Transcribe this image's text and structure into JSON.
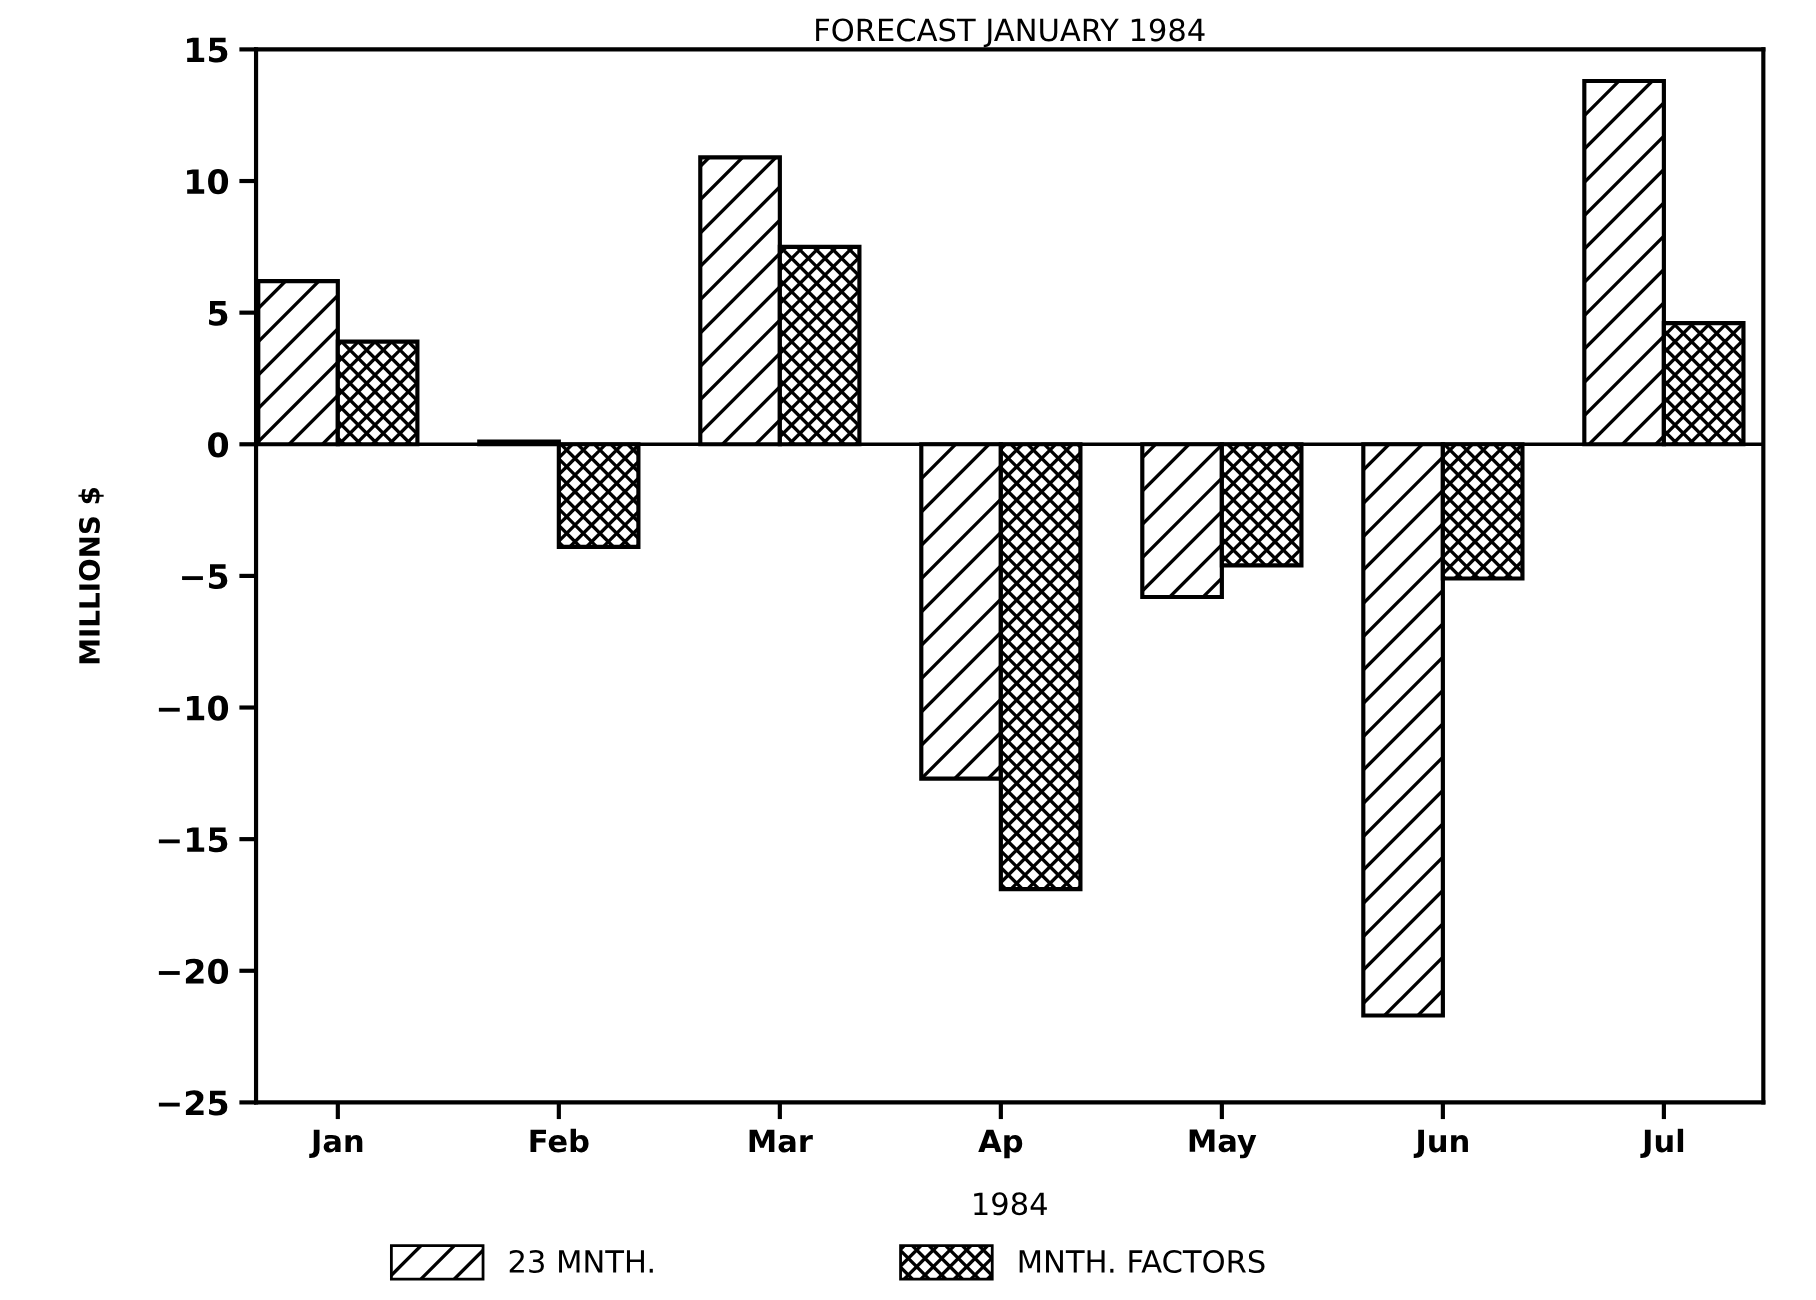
{
  "chart_data": {
    "type": "bar",
    "title": "FORECAST JANUARY 1984",
    "xlabel": "1984",
    "ylabel": "MILLIONS $",
    "categories": [
      "Jan",
      "Feb",
      "Mar",
      "Ap",
      "May",
      "Jun",
      "Jul"
    ],
    "series": [
      {
        "name": "23 MNTH.",
        "color": "#000000",
        "values": [
          6.2,
          0.1,
          10.9,
          -12.7,
          -5.8,
          -21.7,
          13.8
        ]
      },
      {
        "name": "MNTH. FACTORS",
        "color": "#000000",
        "values": [
          3.9,
          -3.9,
          7.5,
          -16.9,
          -4.6,
          -5.1,
          4.6
        ]
      }
    ],
    "ylim": [
      -25,
      15
    ],
    "yticks": [
      -25,
      -20,
      -15,
      -10,
      -5,
      0,
      5,
      10,
      15
    ],
    "ref_lines": [
      {
        "axis": "y",
        "value": 0,
        "color": "#000000"
      }
    ],
    "legend": "bottom"
  }
}
